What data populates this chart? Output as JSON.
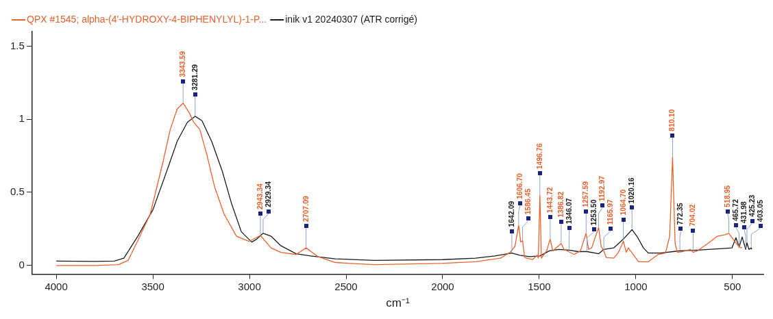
{
  "chart_data": {
    "type": "line",
    "xlabel": "cm⁻¹",
    "xlim": [
      4125,
      340
    ],
    "xticks": [
      4000,
      3500,
      3000,
      2500,
      2000,
      1500,
      1000,
      500
    ],
    "ylim": [
      -0.06,
      1.6
    ],
    "yticks": [
      0,
      0.5,
      1,
      1.5
    ],
    "legend": "top left",
    "marker": "none",
    "line_style": "solid",
    "series": [
      {
        "name": "QPX #1545; alpha-(4'-HYDROXY-4-BIPHENYLYL)-1-P...",
        "color": "#e8622c",
        "x": [
          4000,
          3800,
          3678,
          3628,
          3578,
          3514,
          3449,
          3410,
          3374,
          3343.59,
          3310,
          3289,
          3257,
          3221,
          3181,
          3131,
          3067,
          3002,
          2943.34,
          2888,
          2838,
          2759,
          2707.09,
          2645,
          2555,
          2352,
          2000,
          1830,
          1701,
          1651,
          1626,
          1606.7,
          1596,
          1586.45,
          1576,
          1536,
          1510,
          1505,
          1496.76,
          1489,
          1462,
          1443.72,
          1430,
          1386.82,
          1372,
          1319,
          1287,
          1257.59,
          1245,
          1229,
          1192.97,
          1180,
          1165.97,
          1154,
          1115,
          1090,
          1064.7,
          1050,
          1039,
          986,
          936,
          886,
          847,
          825,
          810.1,
          797,
          785,
          757,
          718,
          704.02,
          682,
          628,
          578,
          539,
          518.95,
          489,
          464,
          450
        ],
        "values": [
          0.0,
          0.0,
          0.005,
          0.035,
          0.17,
          0.35,
          0.7,
          0.93,
          1.07,
          1.11,
          1.04,
          0.98,
          0.93,
          0.76,
          0.54,
          0.35,
          0.2,
          0.165,
          0.205,
          0.12,
          0.09,
          0.075,
          0.12,
          0.06,
          0.02,
          0.005,
          0.015,
          0.025,
          0.05,
          0.09,
          0.13,
          0.275,
          0.16,
          0.17,
          0.055,
          0.04,
          0.07,
          0.05,
          0.48,
          0.05,
          0.1,
          0.18,
          0.1,
          0.15,
          0.11,
          0.075,
          0.1,
          0.22,
          0.11,
          0.12,
          0.26,
          0.13,
          0.1,
          0.055,
          0.05,
          0.09,
          0.165,
          0.09,
          0.12,
          0.025,
          0.025,
          0.075,
          0.085,
          0.2,
          0.74,
          0.15,
          0.09,
          0.095,
          0.11,
          0.09,
          0.1,
          0.15,
          0.2,
          0.21,
          0.22,
          0.165,
          0.125,
          0.12
        ]
      },
      {
        "name": "inik v1 20240307 (ATR corrigé)",
        "color": "#1a1a1a",
        "x": [
          4000,
          3800,
          3700,
          3650,
          3578,
          3500,
          3424,
          3374,
          3321,
          3281.29,
          3246,
          3196,
          3142,
          3092,
          3042,
          2988,
          2963,
          2929.34,
          2888,
          2838,
          2759,
          2684,
          2555,
          2352,
          2000,
          1830,
          1730,
          1642.09,
          1601,
          1551,
          1497,
          1447,
          1400,
          1346.07,
          1300,
          1253.5,
          1193,
          1166,
          1115,
          1065,
          1020.16,
          990,
          961,
          936,
          872,
          807,
          772.35,
          682,
          553,
          503,
          482,
          465.72,
          450,
          431.98,
          425.23,
          415,
          403.05,
          400
        ],
        "values": [
          0.03,
          0.028,
          0.03,
          0.05,
          0.2,
          0.38,
          0.66,
          0.85,
          0.98,
          1.02,
          0.99,
          0.85,
          0.65,
          0.42,
          0.23,
          0.16,
          0.18,
          0.22,
          0.2,
          0.135,
          0.08,
          0.065,
          0.045,
          0.035,
          0.04,
          0.05,
          0.065,
          0.085,
          0.07,
          0.06,
          0.065,
          0.1,
          0.11,
          0.105,
          0.095,
          0.095,
          0.08,
          0.11,
          0.12,
          0.18,
          0.245,
          0.19,
          0.12,
          0.085,
          0.085,
          0.095,
          0.1,
          0.105,
          0.115,
          0.12,
          0.19,
          0.125,
          0.195,
          0.11,
          0.155,
          0.11,
          0.12,
          0.11
        ]
      }
    ],
    "annotations": [
      {
        "text": "3343.59",
        "x": 3343.59,
        "y": 1.11
      },
      {
        "text": "3281.29",
        "x": 3281.29,
        "y": 1.02
      },
      {
        "text": "2943.34",
        "x": 2943.34,
        "y": 0.205
      },
      {
        "text": "2929.34",
        "x": 2929.34,
        "y": 0.22
      },
      {
        "text": "2707.09",
        "x": 2707.09,
        "y": 0.12
      },
      {
        "text": "1642.09",
        "x": 1642.09,
        "y": 0.085
      },
      {
        "text": "1606.70",
        "x": 1606.7,
        "y": 0.275
      },
      {
        "text": "1586.45",
        "x": 1586.45,
        "y": 0.17
      },
      {
        "text": "1496.76",
        "x": 1496.76,
        "y": 0.48
      },
      {
        "text": "1443.72",
        "x": 1443.72,
        "y": 0.18
      },
      {
        "text": "1386.82",
        "x": 1386.82,
        "y": 0.15
      },
      {
        "text": "1346.07",
        "x": 1346.07,
        "y": 0.105
      },
      {
        "text": "1257.59",
        "x": 1257.59,
        "y": 0.22
      },
      {
        "text": "1253.50",
        "x": 1253.5,
        "y": 0.095
      },
      {
        "text": "1192.97",
        "x": 1192.97,
        "y": 0.26
      },
      {
        "text": "1165.97",
        "x": 1165.97,
        "y": 0.1
      },
      {
        "text": "1064.70",
        "x": 1064.7,
        "y": 0.165
      },
      {
        "text": "1020.16",
        "x": 1020.16,
        "y": 0.245
      },
      {
        "text": "810.10",
        "x": 810.1,
        "y": 0.74
      },
      {
        "text": "772.35",
        "x": 772.35,
        "y": 0.1
      },
      {
        "text": "704.02",
        "x": 704.02,
        "y": 0.09
      },
      {
        "text": "518.95",
        "x": 518.95,
        "y": 0.22
      },
      {
        "text": "465.72",
        "x": 465.72,
        "y": 0.125
      },
      {
        "text": "431.98",
        "x": 431.98,
        "y": 0.11
      },
      {
        "text": "425.23",
        "x": 425.23,
        "y": 0.155
      },
      {
        "text": "403.05",
        "x": 403.05,
        "y": 0.12
      }
    ]
  }
}
